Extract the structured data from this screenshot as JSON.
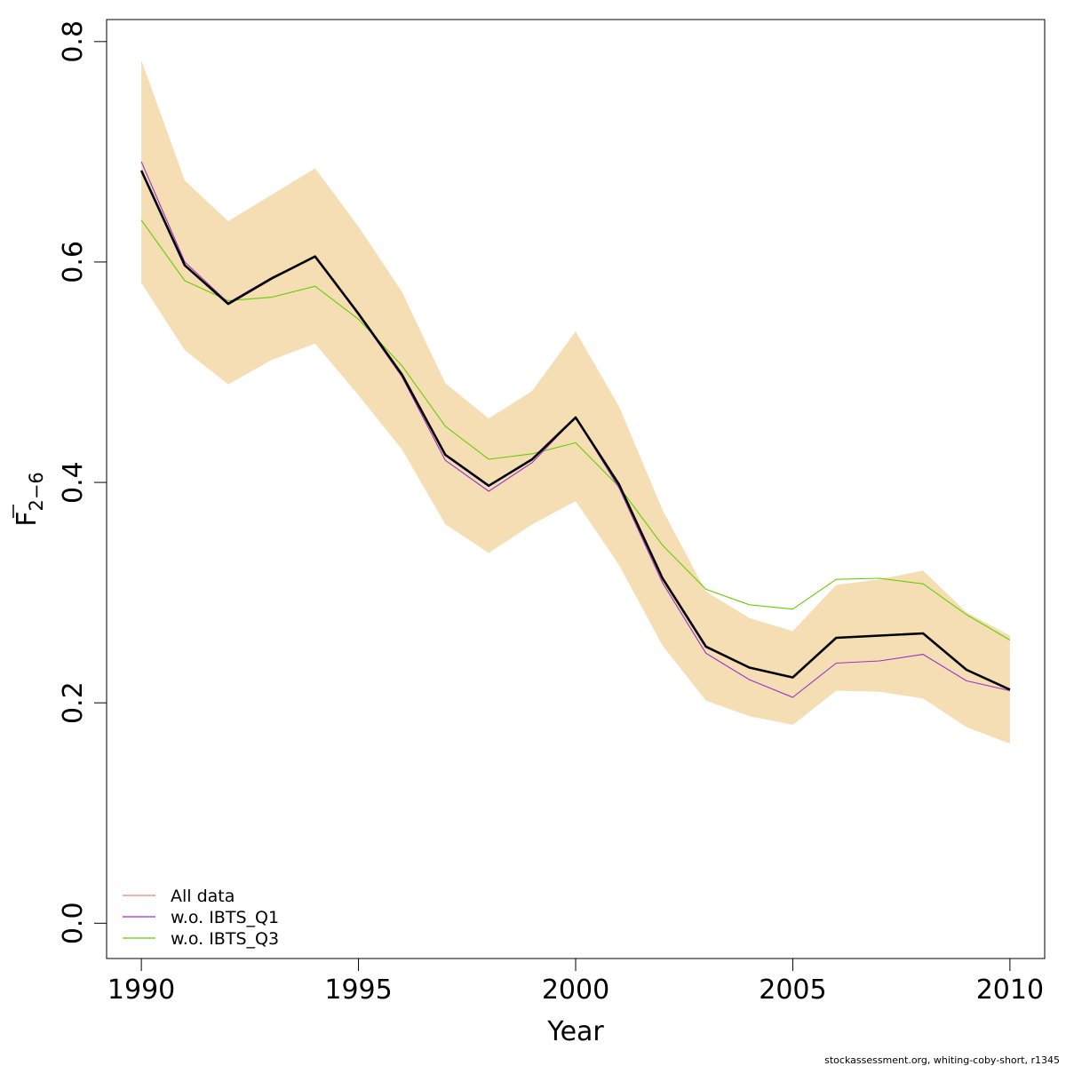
{
  "chart_data": {
    "type": "line",
    "xlabel": "Year",
    "ylabel_main": "F",
    "ylabel_sub": "2−6",
    "xlim": [
      1989.2,
      2010.8
    ],
    "ylim": [
      -0.032,
      0.82
    ],
    "x_ticks": [
      1990,
      1995,
      2000,
      2005,
      2010
    ],
    "x_tick_labels": [
      "1990",
      "1995",
      "2000",
      "2005",
      "2010"
    ],
    "y_ticks": [
      0.0,
      0.2,
      0.4,
      0.6,
      0.8
    ],
    "y_tick_labels": [
      "0.0",
      "0.2",
      "0.4",
      "0.6",
      "0.8"
    ],
    "x": [
      1990,
      1991,
      1992,
      1993,
      1994,
      1995,
      1996,
      1997,
      1998,
      1999,
      2000,
      2001,
      2002,
      2003,
      2004,
      2005,
      2006,
      2007,
      2008,
      2009,
      2010
    ],
    "band": {
      "color": "#F5DEB3",
      "lower": [
        0.581,
        0.52,
        0.489,
        0.511,
        0.526,
        0.479,
        0.43,
        0.362,
        0.336,
        0.362,
        0.383,
        0.325,
        0.252,
        0.202,
        0.188,
        0.18,
        0.211,
        0.21,
        0.204,
        0.178,
        0.163
      ],
      "upper": [
        0.783,
        0.674,
        0.637,
        0.661,
        0.685,
        0.632,
        0.573,
        0.49,
        0.458,
        0.483,
        0.537,
        0.469,
        0.375,
        0.301,
        0.277,
        0.265,
        0.307,
        0.312,
        0.32,
        0.282,
        0.261
      ]
    },
    "series": [
      {
        "name": "All data",
        "color": "#000000",
        "values": [
          0.683,
          0.597,
          0.562,
          0.585,
          0.605,
          0.553,
          0.498,
          0.425,
          0.397,
          0.421,
          0.459,
          0.398,
          0.313,
          0.251,
          0.232,
          0.223,
          0.259,
          0.261,
          0.263,
          0.23,
          0.212
        ]
      },
      {
        "name": "w.o. IBTS_Q1",
        "color": "#9932CC",
        "values": [
          0.691,
          0.6,
          0.563,
          0.586,
          0.605,
          0.552,
          0.496,
          0.42,
          0.392,
          0.418,
          0.459,
          0.395,
          0.309,
          0.245,
          0.221,
          0.205,
          0.236,
          0.238,
          0.244,
          0.22,
          0.211
        ]
      },
      {
        "name": "w.o. IBTS_Q3",
        "color": "#66CD00",
        "values": [
          0.638,
          0.583,
          0.565,
          0.568,
          0.578,
          0.548,
          0.506,
          0.451,
          0.421,
          0.426,
          0.436,
          0.396,
          0.343,
          0.303,
          0.289,
          0.285,
          0.312,
          0.313,
          0.308,
          0.28,
          0.257
        ]
      }
    ],
    "legend": {
      "position": "bottom-left",
      "entries": [
        {
          "label": "All data",
          "color": "#F08080"
        },
        {
          "label": "w.o. IBTS_Q1",
          "color": "#9932CC"
        },
        {
          "label": "w.o. IBTS_Q3",
          "color": "#66CD00"
        }
      ]
    },
    "credit": "stockassessment.org, whiting-coby-short, r1345"
  }
}
